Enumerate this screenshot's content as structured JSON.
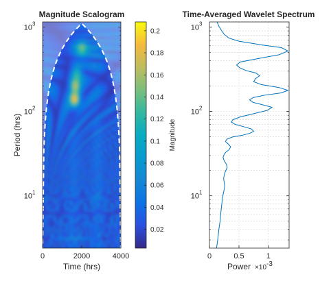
{
  "chart_data": [
    {
      "type": "heatmap",
      "title": "Magnitude Scalogram",
      "xlabel": "Time (hrs)",
      "ylabel": "Period (hrs)",
      "xlim": [
        0,
        4000
      ],
      "ylim": [
        2.4,
        1150
      ],
      "yscale": "log",
      "xticks": [
        0,
        2000,
        4000
      ],
      "xtick_labels": [
        "0",
        "2000",
        "4000"
      ],
      "yticks": [
        10,
        100,
        1000
      ],
      "ytick_labels": [
        "10",
        "10",
        "10"
      ],
      "ytick_exponents": [
        "1",
        "2",
        "3"
      ],
      "colorbar": {
        "label": "Magnitude",
        "range": [
          0.003,
          0.208
        ],
        "ticks": [
          0.02,
          0.04,
          0.06,
          0.08,
          0.1,
          0.12,
          0.14,
          0.16,
          0.18,
          0.2
        ],
        "tick_labels": [
          "0.02",
          "0.04",
          "0.06",
          "0.08",
          "0.1",
          "0.12",
          "0.14",
          "0.16",
          "0.18",
          "0.2"
        ],
        "colormap": "parula"
      },
      "cone_of_influence": true,
      "hotspots": [
        {
          "time": 1650,
          "period": 140,
          "magnitude": 0.19
        },
        {
          "time": 1650,
          "period": 200,
          "magnitude": 0.15
        },
        {
          "time": 2000,
          "period": 560,
          "magnitude": 0.1
        },
        {
          "time": 1750,
          "period": 290,
          "magnitude": 0.11
        }
      ]
    },
    {
      "type": "line",
      "title": "Time-Averaged Wavelet Spectrum",
      "xlabel": "Power",
      "xlabel_multiplier": "×10",
      "xlabel_multiplier_exponent": "-3",
      "xlim": [
        0,
        0.00135
      ],
      "ylim": [
        2.4,
        1150
      ],
      "yscale": "log",
      "xticks": [
        0,
        0.0005,
        0.001
      ],
      "xtick_labels": [
        "0",
        "0.5",
        "1"
      ],
      "yticks": [
        10,
        100,
        1000
      ],
      "ytick_labels": [
        "10",
        "10",
        "10"
      ],
      "ytick_exponents": [
        "1",
        "2",
        "3"
      ],
      "grid": true,
      "line_color": "#0072BD",
      "series": [
        {
          "x": [
            0.00012,
            0.00014,
            0.00016,
            0.00018,
            0.00019,
            0.0002,
            0.00021,
            0.00022,
            0.00024,
            0.00026,
            0.00025,
            0.00024,
            0.00025,
            0.00027,
            0.0003,
            0.00029,
            0.00025,
            0.00023,
            0.00025,
            0.00028,
            0.00033,
            0.00036,
            0.00032,
            0.00027,
            0.0003,
            0.0004,
            0.00055,
            0.00068,
            0.00075,
            0.00071,
            0.00058,
            0.00044,
            0.00037,
            0.0004,
            0.00052,
            0.00075,
            0.00098,
            0.00106,
            0.0009,
            0.00074,
            0.00068,
            0.00074,
            0.00094,
            0.00122,
            0.00133,
            0.00118,
            0.00088,
            0.00075,
            0.00078,
            0.00085,
            0.00079,
            0.00062,
            0.00051,
            0.00046,
            0.00052,
            0.0008,
            0.00118,
            0.00133,
            0.00122,
            0.00085,
            0.0005,
            0.00033,
            0.00025,
            0.00021,
            0.00016,
            0.00013
          ],
          "y": [
            2.4,
            3,
            4,
            5,
            6,
            7,
            8,
            9.5,
            11,
            13,
            14.5,
            16,
            17.5,
            19.5,
            21.5,
            23.5,
            26,
            28.5,
            31,
            33,
            35,
            38,
            41,
            44,
            47,
            50,
            52,
            55,
            58,
            62,
            66,
            70,
            75,
            80,
            86,
            94,
            103,
            112,
            120,
            128,
            137,
            146,
            156,
            166,
            178,
            192,
            208,
            225,
            245,
            265,
            285,
            305,
            330,
            355,
            385,
            420,
            470,
            520,
            570,
            620,
            680,
            740,
            820,
            900,
            1020,
            1150
          ]
        }
      ]
    }
  ]
}
